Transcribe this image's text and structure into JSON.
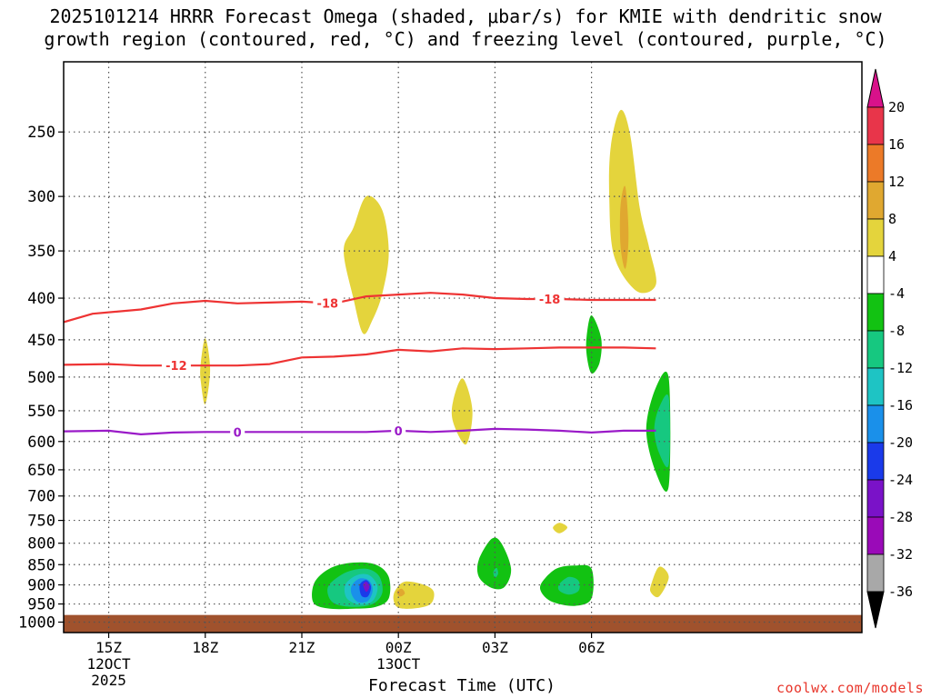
{
  "title": {
    "line1": "2025101214 HRRR Forecast Omega (shaded, μbar/s) for KMIE with dendritic snow",
    "line2": "growth region (contoured, red, °C) and freezing level (contoured, purple, °C)"
  },
  "credit": "coolwx.com/models",
  "chart_data": {
    "type": "contour",
    "xlabel": "Forecast Time (UTC)",
    "x_range_hours": [
      -0.4,
      24.4
    ],
    "x_ticks": [
      {
        "hour": 1,
        "label": "15Z",
        "sub1": "12OCT",
        "sub2": "2025"
      },
      {
        "hour": 4,
        "label": "18Z",
        "sub1": "",
        "sub2": ""
      },
      {
        "hour": 7,
        "label": "21Z",
        "sub1": "",
        "sub2": ""
      },
      {
        "hour": 10,
        "label": "00Z",
        "sub1": "13OCT",
        "sub2": ""
      },
      {
        "hour": 13,
        "label": "03Z",
        "sub1": "",
        "sub2": ""
      },
      {
        "hour": 16,
        "label": "06Z",
        "sub1": "",
        "sub2": ""
      }
    ],
    "y_axis": "pressure (hPa), log scale, inverted",
    "y_range_hpa": [
      205,
      1030
    ],
    "y_ticks": [
      "250",
      "300",
      "350",
      "400",
      "450",
      "500",
      "550",
      "600",
      "650",
      "700",
      "750",
      "800",
      "850",
      "900",
      "950",
      "1000"
    ],
    "ground": {
      "from_hpa": 980,
      "color": "#a0522d"
    },
    "colorbar": {
      "labels": [
        "20",
        "16",
        "12",
        "8",
        "4",
        "-4",
        "-8",
        "-12",
        "-16",
        "-20",
        "-24",
        "-28",
        "-32",
        "-36"
      ],
      "colors": [
        "#e8354a",
        "#ec7a28",
        "#e0a830",
        "#e4d43c",
        "#ffffff",
        "#12c212",
        "#16c880",
        "#1ec4c4",
        "#1a90ea",
        "#1a3aea",
        "#7a12c8",
        "#9a0ab8",
        "#a8a8a8"
      ],
      "top_color": "#d8128a",
      "bottom_color": "#000000"
    },
    "contours": [
      {
        "label": "-18",
        "color": "#ee3333",
        "points": [
          [
            -0.4,
            428
          ],
          [
            0.5,
            418
          ],
          [
            2,
            413
          ],
          [
            3,
            406
          ],
          [
            4,
            403
          ],
          [
            5,
            406
          ],
          [
            6,
            405
          ],
          [
            7,
            404
          ],
          [
            8,
            406
          ],
          [
            9,
            398
          ],
          [
            10,
            396
          ],
          [
            11,
            394
          ],
          [
            12,
            396
          ],
          [
            13,
            400
          ],
          [
            14,
            401
          ],
          [
            15,
            401
          ],
          [
            16,
            402
          ],
          [
            17,
            402
          ],
          [
            18,
            402
          ]
        ],
        "label_hours": [
          7.8,
          14.7
        ]
      },
      {
        "label": "-12",
        "color": "#ee3333",
        "points": [
          [
            -0.4,
            483
          ],
          [
            1,
            482
          ],
          [
            2,
            484
          ],
          [
            3,
            484
          ],
          [
            4,
            484
          ],
          [
            5,
            484
          ],
          [
            6,
            482
          ],
          [
            7,
            473
          ],
          [
            8,
            472
          ],
          [
            9,
            469
          ],
          [
            10,
            463
          ],
          [
            11,
            465
          ],
          [
            12,
            461
          ],
          [
            13,
            462
          ],
          [
            14,
            461
          ],
          [
            15,
            460
          ],
          [
            16,
            460
          ],
          [
            17,
            460
          ],
          [
            18,
            461
          ]
        ],
        "label_hours": [
          3.1
        ]
      },
      {
        "label": "0",
        "color": "#9a1ac8",
        "points": [
          [
            -0.4,
            583
          ],
          [
            1,
            582
          ],
          [
            2,
            588
          ],
          [
            3,
            585
          ],
          [
            4,
            584
          ],
          [
            5,
            584
          ],
          [
            6,
            584
          ],
          [
            7,
            584
          ],
          [
            8,
            584
          ],
          [
            9,
            584
          ],
          [
            10,
            582
          ],
          [
            11,
            584
          ],
          [
            12,
            582
          ],
          [
            13,
            579
          ],
          [
            14,
            580
          ],
          [
            15,
            582
          ],
          [
            16,
            585
          ],
          [
            17,
            582
          ],
          [
            18,
            582
          ]
        ],
        "label_hours": [
          5,
          10
        ]
      }
    ],
    "shaded_regions": [
      {
        "color": "#e4d43c",
        "points": [
          [
            8.6,
            328
          ],
          [
            9,
            300
          ],
          [
            9.5,
            312
          ],
          [
            9.7,
            352
          ],
          [
            9.5,
            395
          ],
          [
            9.2,
            425
          ],
          [
            8.9,
            442
          ],
          [
            8.6,
            400
          ],
          [
            8.3,
            350
          ]
        ]
      },
      {
        "color": "#e4d43c",
        "points": [
          [
            3.85,
            485
          ],
          [
            4,
            448
          ],
          [
            4.15,
            490
          ],
          [
            4,
            540
          ],
          [
            3.87,
            510
          ]
        ]
      },
      {
        "color": "#e4d43c",
        "points": [
          [
            11.7,
            535
          ],
          [
            12,
            502
          ],
          [
            12.3,
            550
          ],
          [
            12.1,
            605
          ],
          [
            11.7,
            568
          ]
        ]
      },
      {
        "color": "#e4d43c",
        "points": [
          [
            16.6,
            260
          ],
          [
            16.9,
            235
          ],
          [
            17.2,
            252
          ],
          [
            17.5,
            310
          ],
          [
            17.8,
            348
          ],
          [
            18,
            385
          ],
          [
            17.4,
            392
          ],
          [
            16.7,
            355
          ],
          [
            16.55,
            300
          ]
        ]
      },
      {
        "color": "#e0a830",
        "points": [
          [
            16.9,
            308
          ],
          [
            17.05,
            292
          ],
          [
            17.15,
            335
          ],
          [
            17.05,
            368
          ],
          [
            16.9,
            345
          ]
        ]
      },
      {
        "color": "#e4d43c",
        "points": [
          [
            14.8,
            766
          ],
          [
            15,
            755
          ],
          [
            15.25,
            765
          ],
          [
            15,
            778
          ]
        ]
      },
      {
        "color": "#e4d43c",
        "points": [
          [
            17.85,
            900
          ],
          [
            18.1,
            855
          ],
          [
            18.4,
            880
          ],
          [
            18.1,
            930
          ],
          [
            17.85,
            920
          ]
        ]
      },
      {
        "color": "#e4d43c",
        "points": [
          [
            9.9,
            915
          ],
          [
            10.2,
            892
          ],
          [
            10.8,
            900
          ],
          [
            11.1,
            918
          ],
          [
            11,
            950
          ],
          [
            10.5,
            962
          ],
          [
            10,
            960
          ],
          [
            9.85,
            940
          ]
        ]
      },
      {
        "color": "#e0a830",
        "points": [
          [
            9.95,
            918
          ],
          [
            10.1,
            910
          ],
          [
            10.2,
            922
          ],
          [
            10.05,
            930
          ]
        ]
      },
      {
        "color": "#12c212",
        "points": [
          [
            7.4,
            893
          ],
          [
            7.9,
            858
          ],
          [
            8.6,
            845
          ],
          [
            9.3,
            850
          ],
          [
            9.7,
            880
          ],
          [
            9.7,
            935
          ],
          [
            9.3,
            958
          ],
          [
            8.6,
            963
          ],
          [
            7.8,
            962
          ],
          [
            7.35,
            945
          ]
        ]
      },
      {
        "color": "#16c880",
        "points": [
          [
            7.9,
            895
          ],
          [
            8.4,
            868
          ],
          [
            9,
            860
          ],
          [
            9.4,
            878
          ],
          [
            9.5,
            920
          ],
          [
            9.2,
            950
          ],
          [
            8.6,
            958
          ],
          [
            8,
            948
          ],
          [
            7.8,
            920
          ]
        ]
      },
      {
        "color": "#1ec4c4",
        "points": [
          [
            8.35,
            900
          ],
          [
            8.7,
            876
          ],
          [
            9.1,
            876
          ],
          [
            9.35,
            905
          ],
          [
            9.2,
            942
          ],
          [
            8.8,
            952
          ],
          [
            8.4,
            935
          ]
        ]
      },
      {
        "color": "#1a90ea",
        "points": [
          [
            8.55,
            902
          ],
          [
            8.8,
            884
          ],
          [
            9.1,
            890
          ],
          [
            9.2,
            915
          ],
          [
            9.05,
            942
          ],
          [
            8.75,
            945
          ],
          [
            8.55,
            925
          ]
        ]
      },
      {
        "color": "#1a3aea",
        "points": [
          [
            8.8,
            900
          ],
          [
            9,
            888
          ],
          [
            9.15,
            905
          ],
          [
            9.05,
            930
          ],
          [
            8.85,
            928
          ]
        ]
      },
      {
        "color": "#7a12c8",
        "points": [
          [
            8.9,
            900
          ],
          [
            9,
            892
          ],
          [
            9.1,
            905
          ],
          [
            9,
            918
          ]
        ]
      },
      {
        "color": "#12c212",
        "points": [
          [
            12.5,
            838
          ],
          [
            12.9,
            790
          ],
          [
            13.2,
            800
          ],
          [
            13.5,
            860
          ],
          [
            13.3,
            905
          ],
          [
            12.9,
            908
          ],
          [
            12.5,
            880
          ]
        ]
      },
      {
        "color": "#16c880",
        "points": [
          [
            12.95,
            868
          ],
          [
            13.05,
            858
          ],
          [
            13.1,
            872
          ],
          [
            13,
            882
          ]
        ]
      },
      {
        "color": "#12c212",
        "points": [
          [
            14.45,
            895
          ],
          [
            14.9,
            860
          ],
          [
            15.5,
            852
          ],
          [
            16,
            860
          ],
          [
            16,
            935
          ],
          [
            15.5,
            955
          ],
          [
            14.8,
            945
          ],
          [
            14.45,
            920
          ]
        ]
      },
      {
        "color": "#16c880",
        "points": [
          [
            15,
            898
          ],
          [
            15.3,
            880
          ],
          [
            15.6,
            890
          ],
          [
            15.6,
            915
          ],
          [
            15.3,
            925
          ],
          [
            15,
            915
          ]
        ]
      },
      {
        "color": "#12c212",
        "points": [
          [
            15.85,
            445
          ],
          [
            16,
            420
          ],
          [
            16.3,
            448
          ],
          [
            16.25,
            480
          ],
          [
            16,
            495
          ],
          [
            15.85,
            470
          ]
        ]
      },
      {
        "color": "#12c212",
        "points": [
          [
            18,
            515
          ],
          [
            18.4,
            502
          ],
          [
            18.4,
            680
          ],
          [
            18,
            655
          ],
          [
            17.7,
            580
          ]
        ]
      },
      {
        "color": "#16c880",
        "points": [
          [
            18.1,
            545
          ],
          [
            18.4,
            530
          ],
          [
            18.4,
            640
          ],
          [
            18.1,
            620
          ],
          [
            17.95,
            580
          ]
        ]
      }
    ]
  }
}
